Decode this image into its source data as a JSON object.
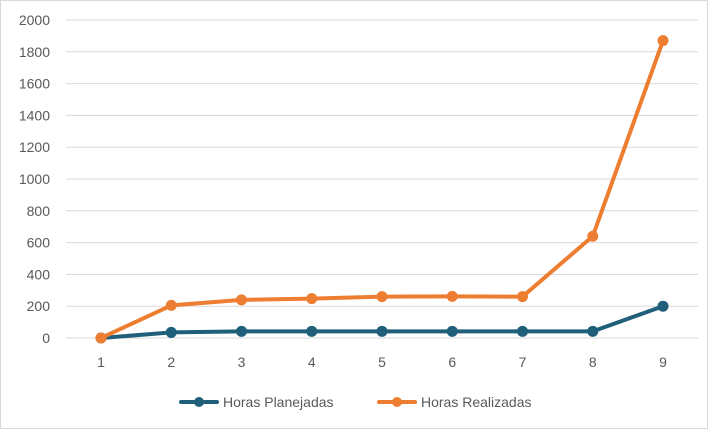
{
  "chart_data": {
    "type": "line",
    "title": "",
    "xlabel": "",
    "ylabel": "",
    "x": [
      1,
      2,
      3,
      4,
      5,
      6,
      7,
      8,
      9
    ],
    "x_tick_labels": [
      "1",
      "2",
      "3",
      "4",
      "5",
      "6",
      "7",
      "8",
      "9"
    ],
    "ylim": [
      0,
      2000
    ],
    "y_ticks": [
      0,
      200,
      400,
      600,
      800,
      1000,
      1200,
      1400,
      1600,
      1800,
      2000
    ],
    "y_tick_labels": [
      "0",
      "200",
      "400",
      "600",
      "800",
      "1000",
      "1200",
      "1400",
      "1600",
      "1800",
      "2000"
    ],
    "grid": true,
    "legend_position": "bottom",
    "series": [
      {
        "name": "Horas Planejadas",
        "color": "#1f5f7a",
        "values": [
          0,
          35,
          42,
          42,
          42,
          42,
          42,
          42,
          200
        ]
      },
      {
        "name": "Horas Realizadas",
        "color": "#ed7d31",
        "values": [
          0,
          205,
          240,
          248,
          260,
          262,
          260,
          640,
          1870
        ]
      }
    ]
  }
}
